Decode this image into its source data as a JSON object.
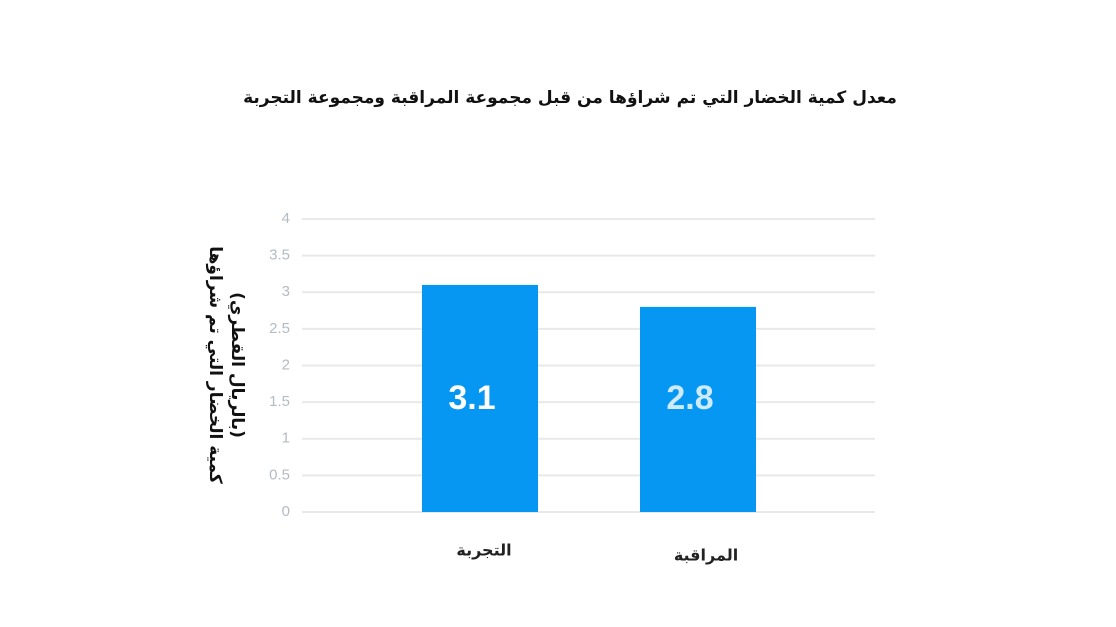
{
  "chart_data": {
    "type": "bar",
    "title": "معدل كمية الخضار التي تم شراؤها من قبل مجموعة المراقبة ومجموعة التجربة",
    "y_label": [
      "كمية الخضار التي تم شراؤها",
      "(بالريال القطري)"
    ],
    "categories": [
      "التجربة",
      "المراقبة"
    ],
    "values": [
      3.1,
      2.8
    ],
    "color": "#0597f2",
    "value_label_colors": [
      "#ffffff",
      "#cdeaff"
    ],
    "ylim": [
      0,
      4
    ],
    "yticks": [
      0,
      0.5,
      1,
      1.5,
      2,
      2.5,
      3,
      3.5,
      4
    ],
    "grid": true
  }
}
